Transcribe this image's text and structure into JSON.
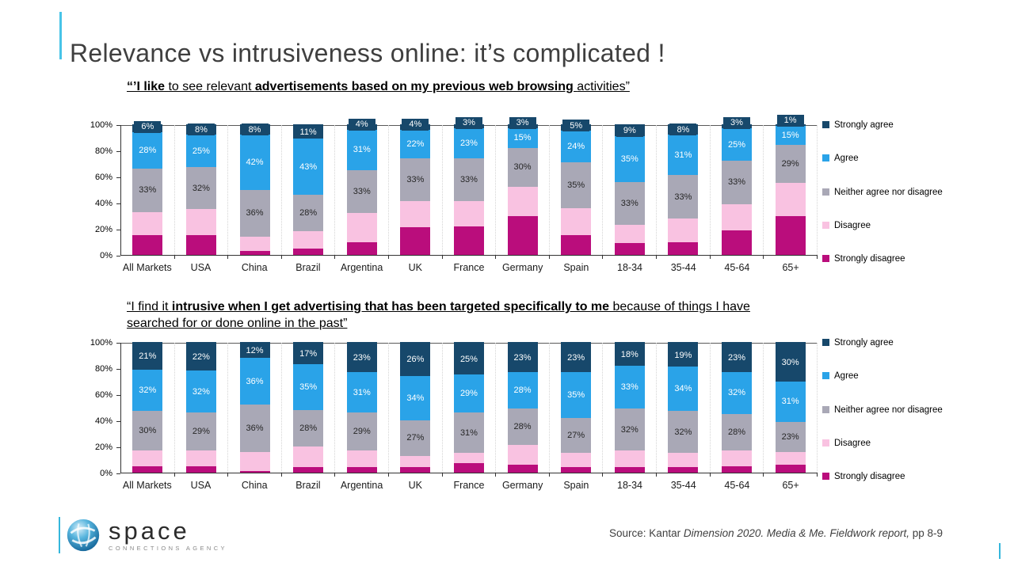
{
  "slide": {
    "title": "Relevance vs intrusiveness online: it’s complicated !",
    "source": {
      "prefix": "Source: Kantar ",
      "italic": "Dimension 2020. Media & Me. Fieldwork report,",
      "suffix": " pp 8-9"
    },
    "logo": {
      "name": "space",
      "tagline": "CONNECTIONS AGENCY",
      "icon": "sphere-swirl-icon"
    }
  },
  "colors": {
    "accent_teal": "#47c4e8",
    "title_text": "#3f3f3f",
    "strongly_agree": "#17486b",
    "agree": "#2aa3e8",
    "neither": "#a9a8b6",
    "disagree": "#f9c2e1",
    "strongly_disagree": "#ba0d7c"
  },
  "chart_data": [
    {
      "type": "bar",
      "stacked": true,
      "title_segments": [
        {
          "text": "“’I like ",
          "bold": true
        },
        {
          "text": "to see relevant ",
          "bold": false
        },
        {
          "text": "advertisements based on my previous web browsing ",
          "bold": true
        },
        {
          "text": "activities”",
          "bold": false
        }
      ],
      "categories": [
        "All Markets",
        "USA",
        "China",
        "Brazil",
        "Argentina",
        "UK",
        "France",
        "Germany",
        "Spain",
        "18-34",
        "35-44",
        "45-64",
        "65+"
      ],
      "ylim": [
        0,
        100
      ],
      "yticks": [
        0,
        20,
        40,
        60,
        80,
        100
      ],
      "ytick_labels": [
        "0%",
        "20%",
        "40%",
        "60%",
        "80%",
        "100%"
      ],
      "grid": "dotted-vertical-separators",
      "legend_position": "right",
      "series": [
        {
          "name": "Strongly agree",
          "color": "#17486b",
          "label_style": "box",
          "values": [
            6,
            8,
            8,
            11,
            4,
            4,
            3,
            3,
            5,
            9,
            8,
            3,
            1
          ]
        },
        {
          "name": "Agree",
          "color": "#2aa3e8",
          "label_style": "white",
          "values": [
            28,
            25,
            42,
            43,
            31,
            22,
            23,
            15,
            24,
            35,
            31,
            25,
            15
          ]
        },
        {
          "name": "Neither agree nor disagree",
          "color": "#a9a8b6",
          "label_style": "dark",
          "values": [
            33,
            32,
            36,
            28,
            33,
            33,
            33,
            30,
            35,
            33,
            33,
            33,
            29
          ]
        },
        {
          "name": "Disagree",
          "color": "#f9c2e1",
          "label_style": "none",
          "values": [
            18,
            20,
            11,
            13,
            22,
            20,
            19,
            22,
            21,
            14,
            18,
            20,
            25
          ]
        },
        {
          "name": "Strongly disagree",
          "color": "#ba0d7c",
          "label_style": "none",
          "values": [
            15,
            15,
            3,
            5,
            10,
            21,
            22,
            30,
            15,
            9,
            10,
            19,
            30
          ]
        }
      ]
    },
    {
      "type": "bar",
      "stacked": true,
      "title_segments": [
        {
          "text": "“I find it ",
          "bold": false
        },
        {
          "text": "intrusive when I get advertising that has been targeted specifically to me ",
          "bold": true
        },
        {
          "text": "because of things I have searched for or done online in the past”",
          "bold": false
        }
      ],
      "categories": [
        "All Markets",
        "USA",
        "China",
        "Brazil",
        "Argentina",
        "UK",
        "France",
        "Germany",
        "Spain",
        "18-34",
        "35-44",
        "45-64",
        "65+"
      ],
      "ylim": [
        0,
        100
      ],
      "yticks": [
        0,
        20,
        40,
        60,
        80,
        100
      ],
      "ytick_labels": [
        "0%",
        "20%",
        "40%",
        "60%",
        "80%",
        "100%"
      ],
      "grid": "dotted-vertical-separators",
      "legend_position": "right",
      "series": [
        {
          "name": "Strongly agree",
          "color": "#17486b",
          "label_style": "box",
          "values": [
            21,
            22,
            12,
            17,
            23,
            26,
            25,
            23,
            23,
            18,
            19,
            23,
            30
          ]
        },
        {
          "name": "Agree",
          "color": "#2aa3e8",
          "label_style": "white",
          "values": [
            32,
            32,
            36,
            35,
            31,
            34,
            29,
            28,
            35,
            33,
            34,
            32,
            31
          ]
        },
        {
          "name": "Neither agree nor disagree",
          "color": "#a9a8b6",
          "label_style": "dark",
          "values": [
            30,
            29,
            36,
            28,
            29,
            27,
            31,
            28,
            27,
            32,
            32,
            28,
            23
          ]
        },
        {
          "name": "Disagree",
          "color": "#f9c2e1",
          "label_style": "none",
          "values": [
            12,
            12,
            15,
            16,
            13,
            9,
            8,
            15,
            11,
            13,
            11,
            12,
            10
          ]
        },
        {
          "name": "Strongly disagree",
          "color": "#ba0d7c",
          "label_style": "none",
          "values": [
            5,
            5,
            1,
            4,
            4,
            4,
            7,
            6,
            4,
            4,
            4,
            5,
            6
          ]
        }
      ]
    }
  ]
}
